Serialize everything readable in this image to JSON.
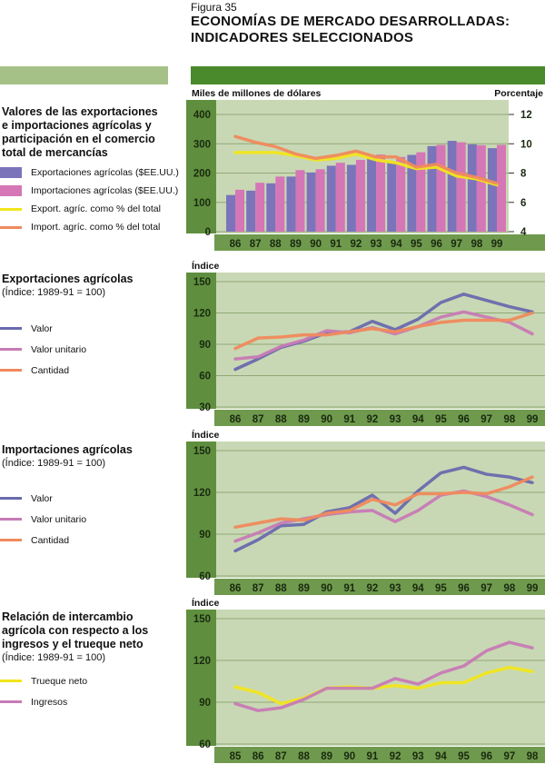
{
  "figure": {
    "label": "Figura 35",
    "title_line1": "ECONOMÍAS DE MERCADO DESARROLLADAS:",
    "title_line2": "INDICADORES SELECCIONADOS"
  },
  "colors": {
    "plot_bg": "#c9d8b4",
    "axis_bg": "#5f8f3e",
    "grid": "#8fa878",
    "exports_bar": "#7b74bb",
    "imports_bar": "#d576b6",
    "yellow": "#f2e61c",
    "orange": "#f08a5d",
    "blue_line": "#6a6aae",
    "pink_line": "#c77bb5"
  },
  "sections": [
    {
      "title_lines": [
        "Valores de las exportaciones",
        "e importaciones agrícolas y",
        "participación en el comercio",
        "total de mercancías"
      ],
      "subtitle": "",
      "legend": [
        {
          "label": "Exportaciones agrícolas ($EE.UU.)",
          "kind": "bar",
          "color": "#7b74bb"
        },
        {
          "label": "Importaciones agrícolas ($EE.UU.)",
          "kind": "bar",
          "color": "#d576b6"
        },
        {
          "label": "Export. agríc. como % del total",
          "kind": "line",
          "color": "#f2e61c"
        },
        {
          "label": "Import. agríc. como % del total",
          "kind": "line",
          "color": "#f08a5d"
        }
      ]
    },
    {
      "title_lines": [
        "Exportaciones agrícolas"
      ],
      "subtitle": "(Índice: 1989-91 = 100)",
      "legend": [
        {
          "label": "Valor",
          "kind": "line",
          "color": "#6a6aae"
        },
        {
          "label": "Valor unitario",
          "kind": "line",
          "color": "#c77bb5"
        },
        {
          "label": "Cantidad",
          "kind": "line",
          "color": "#f08a5d"
        }
      ]
    },
    {
      "title_lines": [
        "Importaciones agrícolas"
      ],
      "subtitle": "(Índice: 1989-91 = 100)",
      "legend": [
        {
          "label": "Valor",
          "kind": "line",
          "color": "#6a6aae"
        },
        {
          "label": "Valor unitario",
          "kind": "line",
          "color": "#c77bb5"
        },
        {
          "label": "Cantidad",
          "kind": "line",
          "color": "#f08a5d"
        }
      ]
    },
    {
      "title_lines": [
        "Relación de intercambio",
        "agrícola con respecto a los",
        "ingresos y el trueque neto"
      ],
      "subtitle": "(Índice: 1989-91 = 100)",
      "legend": [
        {
          "label": "Trueque neto",
          "kind": "line",
          "color": "#f2e61c"
        },
        {
          "label": "Ingresos",
          "kind": "line",
          "color": "#c77bb5"
        }
      ]
    }
  ],
  "chart_data": [
    {
      "type": "bar",
      "title": "Valores de las exportaciones e importaciones agrícolas y participación en el comercio total de mercancías",
      "ylabel": "Miles de millones de dólares",
      "y2label": "Porcentaje",
      "categories": [
        "86",
        "87",
        "88",
        "89",
        "90",
        "91",
        "92",
        "93",
        "94",
        "95",
        "96",
        "97",
        "98",
        "99"
      ],
      "ylim": [
        0,
        400
      ],
      "yticks": [
        0,
        100,
        200,
        300,
        400
      ],
      "y2lim": [
        4,
        12
      ],
      "y2ticks": [
        4,
        6,
        8,
        10,
        12
      ],
      "grid": true,
      "series": [
        {
          "name": "Exportaciones agrícolas ($EE.UU.)",
          "type": "bar",
          "axis": "left",
          "color": "#7b74bb",
          "values": [
            125,
            140,
            165,
            188,
            202,
            225,
            228,
            255,
            240,
            262,
            292,
            310,
            298,
            285
          ]
        },
        {
          "name": "Importaciones agrícolas ($EE.UU.)",
          "type": "bar",
          "axis": "left",
          "color": "#d576b6",
          "values": [
            143,
            167,
            188,
            210,
            213,
            235,
            245,
            263,
            255,
            271,
            296,
            305,
            295,
            296
          ]
        },
        {
          "name": "Export. agríc. como % del total",
          "type": "line",
          "axis": "right",
          "color": "#f2e61c",
          "values": [
            9.4,
            9.4,
            9.4,
            9.2,
            8.9,
            9.0,
            9.3,
            8.9,
            8.7,
            8.3,
            8.4,
            7.8,
            7.6,
            7.2
          ]
        },
        {
          "name": "Import. agríc. como % del total",
          "type": "line",
          "axis": "right",
          "color": "#f08a5d",
          "values": [
            10.5,
            10.1,
            9.8,
            9.3,
            9.0,
            9.2,
            9.5,
            9.1,
            9.1,
            8.4,
            8.6,
            8.0,
            7.7,
            7.3
          ]
        }
      ]
    },
    {
      "type": "line",
      "title": "Exportaciones agrícolas (Índice: 1989-91 = 100)",
      "ylabel": "Índice",
      "categories": [
        "86",
        "87",
        "88",
        "89",
        "90",
        "91",
        "92",
        "93",
        "94",
        "95",
        "96",
        "97",
        "98",
        "99"
      ],
      "ylim": [
        30,
        150
      ],
      "yticks": [
        30,
        60,
        90,
        120,
        150
      ],
      "grid": true,
      "series": [
        {
          "name": "Valor",
          "color": "#6a6aae",
          "values": [
            66,
            76,
            87,
            93,
            101,
            102,
            112,
            104,
            114,
            130,
            138,
            132,
            126,
            121
          ]
        },
        {
          "name": "Valor unitario",
          "color": "#c77bb5",
          "values": [
            76,
            78,
            88,
            94,
            103,
            101,
            106,
            100,
            107,
            116,
            121,
            116,
            111,
            100
          ]
        },
        {
          "name": "Cantidad",
          "color": "#f08a5d",
          "values": [
            86,
            96,
            97,
            99,
            99,
            102,
            105,
            102,
            107,
            111,
            113,
            113,
            113,
            120
          ]
        }
      ]
    },
    {
      "type": "line",
      "title": "Importaciones agrícolas (Índice: 1989-91 = 100)",
      "ylabel": "Índice",
      "categories": [
        "86",
        "87",
        "88",
        "89",
        "90",
        "91",
        "92",
        "93",
        "94",
        "95",
        "96",
        "97",
        "98",
        "99"
      ],
      "ylim": [
        60,
        150
      ],
      "yticks": [
        60,
        90,
        120,
        150
      ],
      "grid": true,
      "series": [
        {
          "name": "Valor",
          "color": "#6a6aae",
          "values": [
            78,
            86,
            96,
            97,
            106,
            109,
            118,
            105,
            121,
            134,
            138,
            133,
            131,
            127
          ]
        },
        {
          "name": "Valor unitario",
          "color": "#c77bb5",
          "values": [
            85,
            91,
            98,
            101,
            104,
            106,
            107,
            99,
            107,
            118,
            121,
            117,
            111,
            104
          ]
        },
        {
          "name": "Cantidad",
          "color": "#f08a5d",
          "values": [
            95,
            98,
            101,
            100,
            105,
            107,
            115,
            111,
            119,
            119,
            120,
            119,
            124,
            131
          ]
        }
      ]
    },
    {
      "type": "line",
      "title": "Relación de intercambio agrícola con respecto a los ingresos y el trueque neto (Índice: 1989-91 = 100)",
      "ylabel": "Índice",
      "categories": [
        "85",
        "86",
        "87",
        "88",
        "89",
        "90",
        "91",
        "92",
        "93",
        "94",
        "95",
        "96",
        "97",
        "98"
      ],
      "ylim": [
        60,
        150
      ],
      "yticks": [
        60,
        90,
        120,
        150
      ],
      "grid": true,
      "series": [
        {
          "name": "Trueque neto",
          "color": "#f2e61c",
          "values": [
            101,
            97,
            89,
            93,
            100,
            101,
            100,
            102,
            100,
            104,
            104,
            111,
            115,
            112
          ]
        },
        {
          "name": "Ingresos",
          "color": "#c77bb5",
          "values": [
            89,
            84,
            86,
            92,
            100,
            100,
            100,
            107,
            103,
            111,
            116,
            127,
            133,
            129
          ]
        }
      ]
    }
  ]
}
